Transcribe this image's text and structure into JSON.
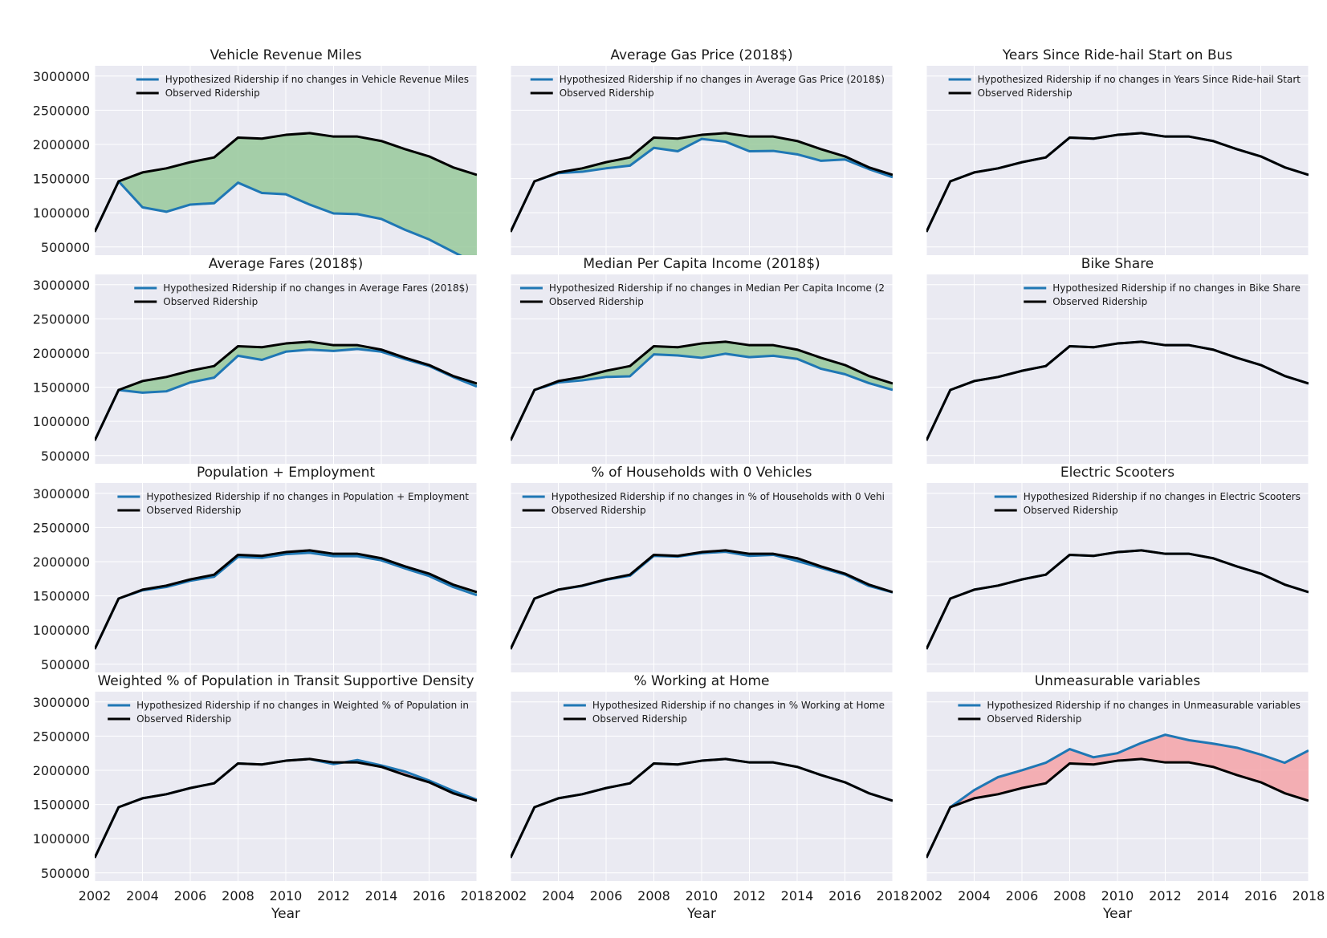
{
  "chart_data": {
    "type": "line",
    "x": [
      2002,
      2003,
      2004,
      2005,
      2006,
      2007,
      2008,
      2009,
      2010,
      2011,
      2012,
      2013,
      2014,
      2015,
      2016,
      2017,
      2018
    ],
    "xlim": [
      2002,
      2018
    ],
    "ylim": [
      380000,
      3150000
    ],
    "xticks": [
      "2002",
      "2004",
      "2006",
      "2008",
      "2010",
      "2012",
      "2014",
      "2016",
      "2018"
    ],
    "yticks": [
      "500000",
      "1000000",
      "1500000",
      "2000000",
      "2500000",
      "3000000"
    ],
    "xlabel": "Year",
    "ylabel": "",
    "grid": true,
    "legend_position": "top-right",
    "colors": {
      "hypothesized": "#1f77b4",
      "observed": "#000000",
      "gain_fill": "#98c99b",
      "loss_fill": "#f4a3a8",
      "plot_background": "#eaeaf2"
    },
    "observed": {
      "name": "Observed Ridership",
      "values": [
        720000,
        1460000,
        1590000,
        1650000,
        1740000,
        1810000,
        2100000,
        2085000,
        2140000,
        2165000,
        2115000,
        2115000,
        2050000,
        1930000,
        1825000,
        1665000,
        1555000
      ]
    },
    "panels": [
      {
        "title": "Vehicle Revenue Miles",
        "legend_label": "Hypothesized Ridership if no changes in Vehicle Revenue Miles",
        "fill": "gain",
        "values": [
          720000,
          1460000,
          1080000,
          1015000,
          1120000,
          1140000,
          1440000,
          1290000,
          1270000,
          1120000,
          990000,
          980000,
          910000,
          750000,
          610000,
          430000,
          250000
        ]
      },
      {
        "title": "Average Gas Price (2018$)",
        "legend_label": "Hypothesized Ridership if no changes in Average Gas Price (2018$)",
        "fill": "gain",
        "values": [
          720000,
          1460000,
          1580000,
          1600000,
          1650000,
          1690000,
          1950000,
          1900000,
          2080000,
          2040000,
          1900000,
          1905000,
          1855000,
          1760000,
          1780000,
          1640000,
          1520000
        ]
      },
      {
        "title": "Years Since Ride-hail Start on Bus",
        "legend_label": "Hypothesized Ridership if no changes in Years Since Ride-hail Start",
        "fill": "none",
        "values": [
          720000,
          1460000,
          1590000,
          1650000,
          1740000,
          1810000,
          2100000,
          2085000,
          2140000,
          2165000,
          2115000,
          2115000,
          2050000,
          1930000,
          1825000,
          1665000,
          1555000
        ]
      },
      {
        "title": "Average Fares (2018$)",
        "legend_label": "Hypothesized Ridership if no changes in Average Fares (2018$)",
        "fill": "gain",
        "values": [
          720000,
          1460000,
          1420000,
          1440000,
          1570000,
          1640000,
          1960000,
          1900000,
          2020000,
          2050000,
          2030000,
          2060000,
          2020000,
          1910000,
          1810000,
          1650000,
          1510000
        ]
      },
      {
        "title": "Median Per Capita Income (2018$)",
        "legend_label": "Hypothesized Ridership if no changes in Median Per Capita Income (2",
        "fill": "gain",
        "values": [
          720000,
          1460000,
          1570000,
          1600000,
          1650000,
          1660000,
          1980000,
          1965000,
          1930000,
          1990000,
          1940000,
          1960000,
          1915000,
          1770000,
          1690000,
          1560000,
          1460000
        ]
      },
      {
        "title": "Bike Share",
        "legend_label": "Hypothesized Ridership if no changes in Bike Share",
        "fill": "none",
        "values": [
          720000,
          1460000,
          1590000,
          1650000,
          1740000,
          1810000,
          2100000,
          2085000,
          2140000,
          2165000,
          2115000,
          2115000,
          2050000,
          1930000,
          1825000,
          1665000,
          1555000
        ]
      },
      {
        "title": "Population + Employment",
        "legend_label": "Hypothesized Ridership if no changes in Population + Employment",
        "fill": "gain",
        "values": [
          720000,
          1460000,
          1580000,
          1630000,
          1720000,
          1780000,
          2070000,
          2055000,
          2110000,
          2130000,
          2080000,
          2080000,
          2020000,
          1900000,
          1790000,
          1630000,
          1510000
        ]
      },
      {
        "title": "% of Households with 0 Vehicles",
        "legend_label": "Hypothesized Ridership if no changes in % of Households with 0 Vehi",
        "fill": "gain",
        "values": [
          720000,
          1460000,
          1590000,
          1645000,
          1735000,
          1795000,
          2085000,
          2075000,
          2125000,
          2145000,
          2085000,
          2100000,
          2010000,
          1910000,
          1810000,
          1645000,
          1550000
        ]
      },
      {
        "title": "Electric Scooters",
        "legend_label": "Hypothesized Ridership if no changes in Electric Scooters",
        "fill": "none",
        "values": [
          720000,
          1460000,
          1590000,
          1650000,
          1740000,
          1810000,
          2100000,
          2085000,
          2140000,
          2165000,
          2115000,
          2115000,
          2050000,
          1930000,
          1825000,
          1665000,
          1555000
        ]
      },
      {
        "title": "Weighted % of Population in Transit Supportive Density",
        "legend_label": "Hypothesized Ridership if no changes in Weighted % of Population in",
        "fill": "loss",
        "values": [
          720000,
          1460000,
          1590000,
          1650000,
          1740000,
          1810000,
          2100000,
          2085000,
          2140000,
          2165000,
          2090000,
          2150000,
          2070000,
          1980000,
          1850000,
          1700000,
          1570000
        ]
      },
      {
        "title": "% Working at Home",
        "legend_label": "Hypothesized Ridership if no changes in % Working at Home",
        "fill": "none",
        "values": [
          720000,
          1460000,
          1590000,
          1650000,
          1740000,
          1810000,
          2100000,
          2085000,
          2140000,
          2165000,
          2115000,
          2115000,
          2050000,
          1930000,
          1825000,
          1665000,
          1555000
        ]
      },
      {
        "title": "Unmeasurable variables",
        "legend_label": "Hypothesized Ridership if no changes in Unmeasurable variables",
        "fill": "loss",
        "values": [
          720000,
          1460000,
          1710000,
          1900000,
          2000000,
          2110000,
          2310000,
          2190000,
          2250000,
          2400000,
          2520000,
          2440000,
          2390000,
          2330000,
          2230000,
          2110000,
          2290000
        ]
      }
    ]
  }
}
